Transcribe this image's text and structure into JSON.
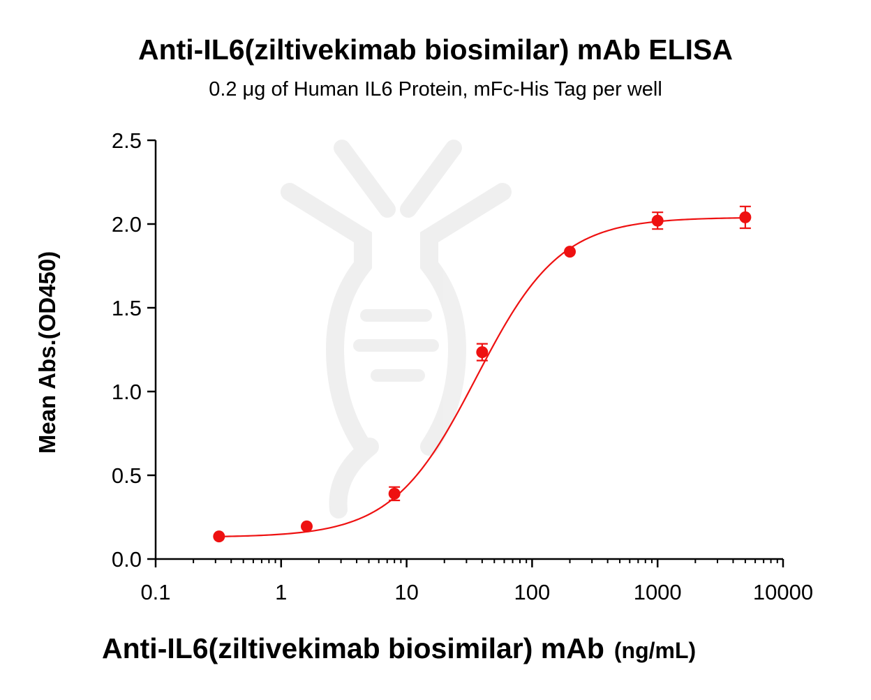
{
  "chart_data": {
    "type": "scatter",
    "title": "Anti-IL6(ziltivekimab biosimilar) mAb ELISA",
    "subtitle": "0.2 μg of Human IL6 Protein, mFc-His Tag per well",
    "xlabel": "Anti-IL6(ziltivekimab biosimilar) mAb",
    "xlabel_unit": "(ng/mL)",
    "ylabel": "Mean Abs.(OD450)",
    "x_scale": "log",
    "xlim": [
      0.1,
      10000
    ],
    "ylim": [
      0,
      2.5
    ],
    "x_ticks": [
      0.1,
      1,
      10,
      100,
      1000,
      10000
    ],
    "x_tick_labels": [
      "0.1",
      "1",
      "10",
      "100",
      "1000",
      "10000"
    ],
    "y_ticks": [
      0,
      0.5,
      1,
      1.5,
      2,
      2.5
    ],
    "y_tick_labels": [
      "0.0",
      "0.5",
      "1.0",
      "1.5",
      "2.0",
      "2.5"
    ],
    "grid": false,
    "legend": "none",
    "color": "#ee1111",
    "series": [
      {
        "x": [
          0.32,
          1.6,
          8,
          40,
          200,
          1000,
          5000
        ],
        "y": [
          0.135,
          0.195,
          0.39,
          1.235,
          1.835,
          2.02,
          2.04
        ],
        "error": [
          0.005,
          0.01,
          0.04,
          0.05,
          0.01,
          0.05,
          0.065
        ],
        "fit": "4PL"
      }
    ]
  }
}
